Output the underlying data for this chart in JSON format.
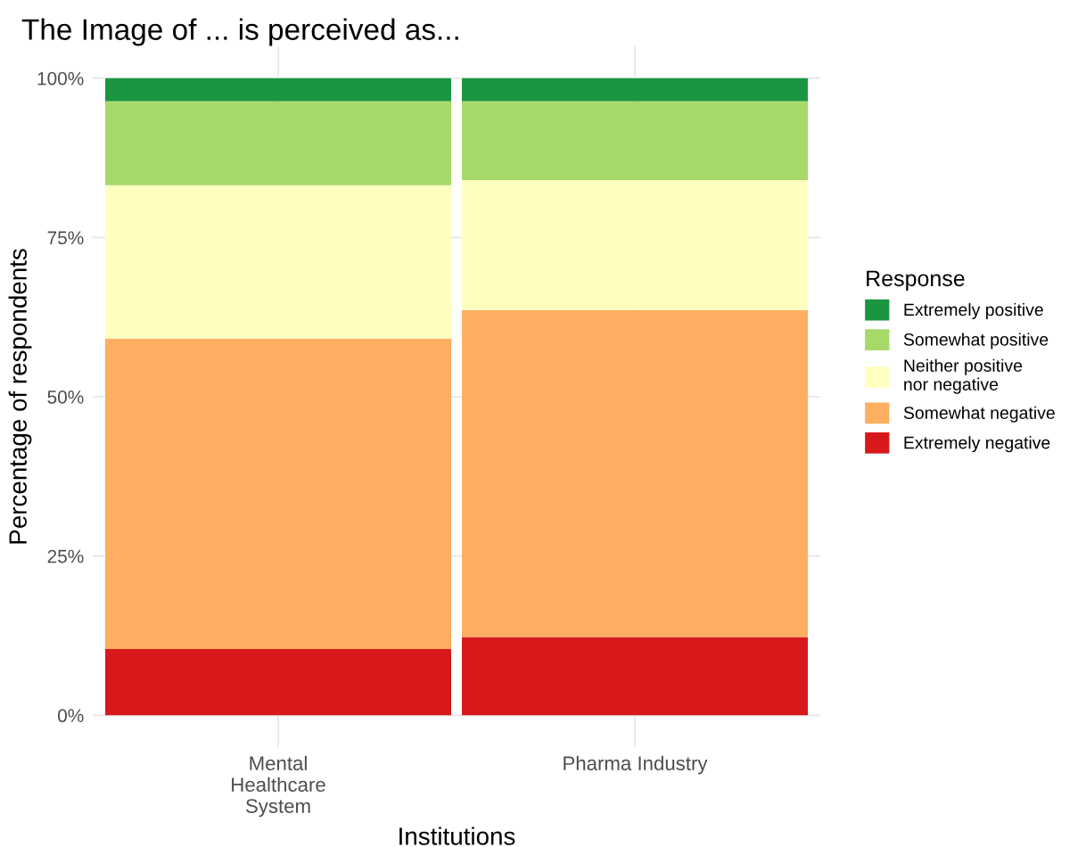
{
  "chart_data": {
    "type": "bar",
    "title": "The Image of ... is perceived as...",
    "xlabel": "Institutions",
    "ylabel": "Percentage of respondents",
    "legend_title": "Response",
    "categories": [
      "Mental\nHealthcare\nSystem",
      "Pharma Industry"
    ],
    "stacked": true,
    "series": [
      {
        "name": "Extremely negative",
        "color": "#d7191c",
        "values": [
          10.4,
          12.3
        ]
      },
      {
        "name": "Somewhat negative",
        "color": "#fdae61",
        "values": [
          48.7,
          51.3
        ]
      },
      {
        "name": "Neither positive\nnor negative",
        "color": "#ffffbf",
        "values": [
          24.1,
          20.4
        ]
      },
      {
        "name": "Somewhat positive",
        "color": "#a6d96a",
        "values": [
          13.2,
          12.4
        ]
      },
      {
        "name": "Extremely positive",
        "color": "#1a9641",
        "values": [
          3.6,
          3.6
        ]
      }
    ],
    "ylim": [
      -5,
      105
    ],
    "yticks": [
      {
        "value": 0,
        "label": "0%"
      },
      {
        "value": 25,
        "label": "25%"
      },
      {
        "value": 50,
        "label": "50%"
      },
      {
        "value": 75,
        "label": "75%"
      },
      {
        "value": 100,
        "label": "100%"
      }
    ],
    "grid": true,
    "legend": "right"
  }
}
